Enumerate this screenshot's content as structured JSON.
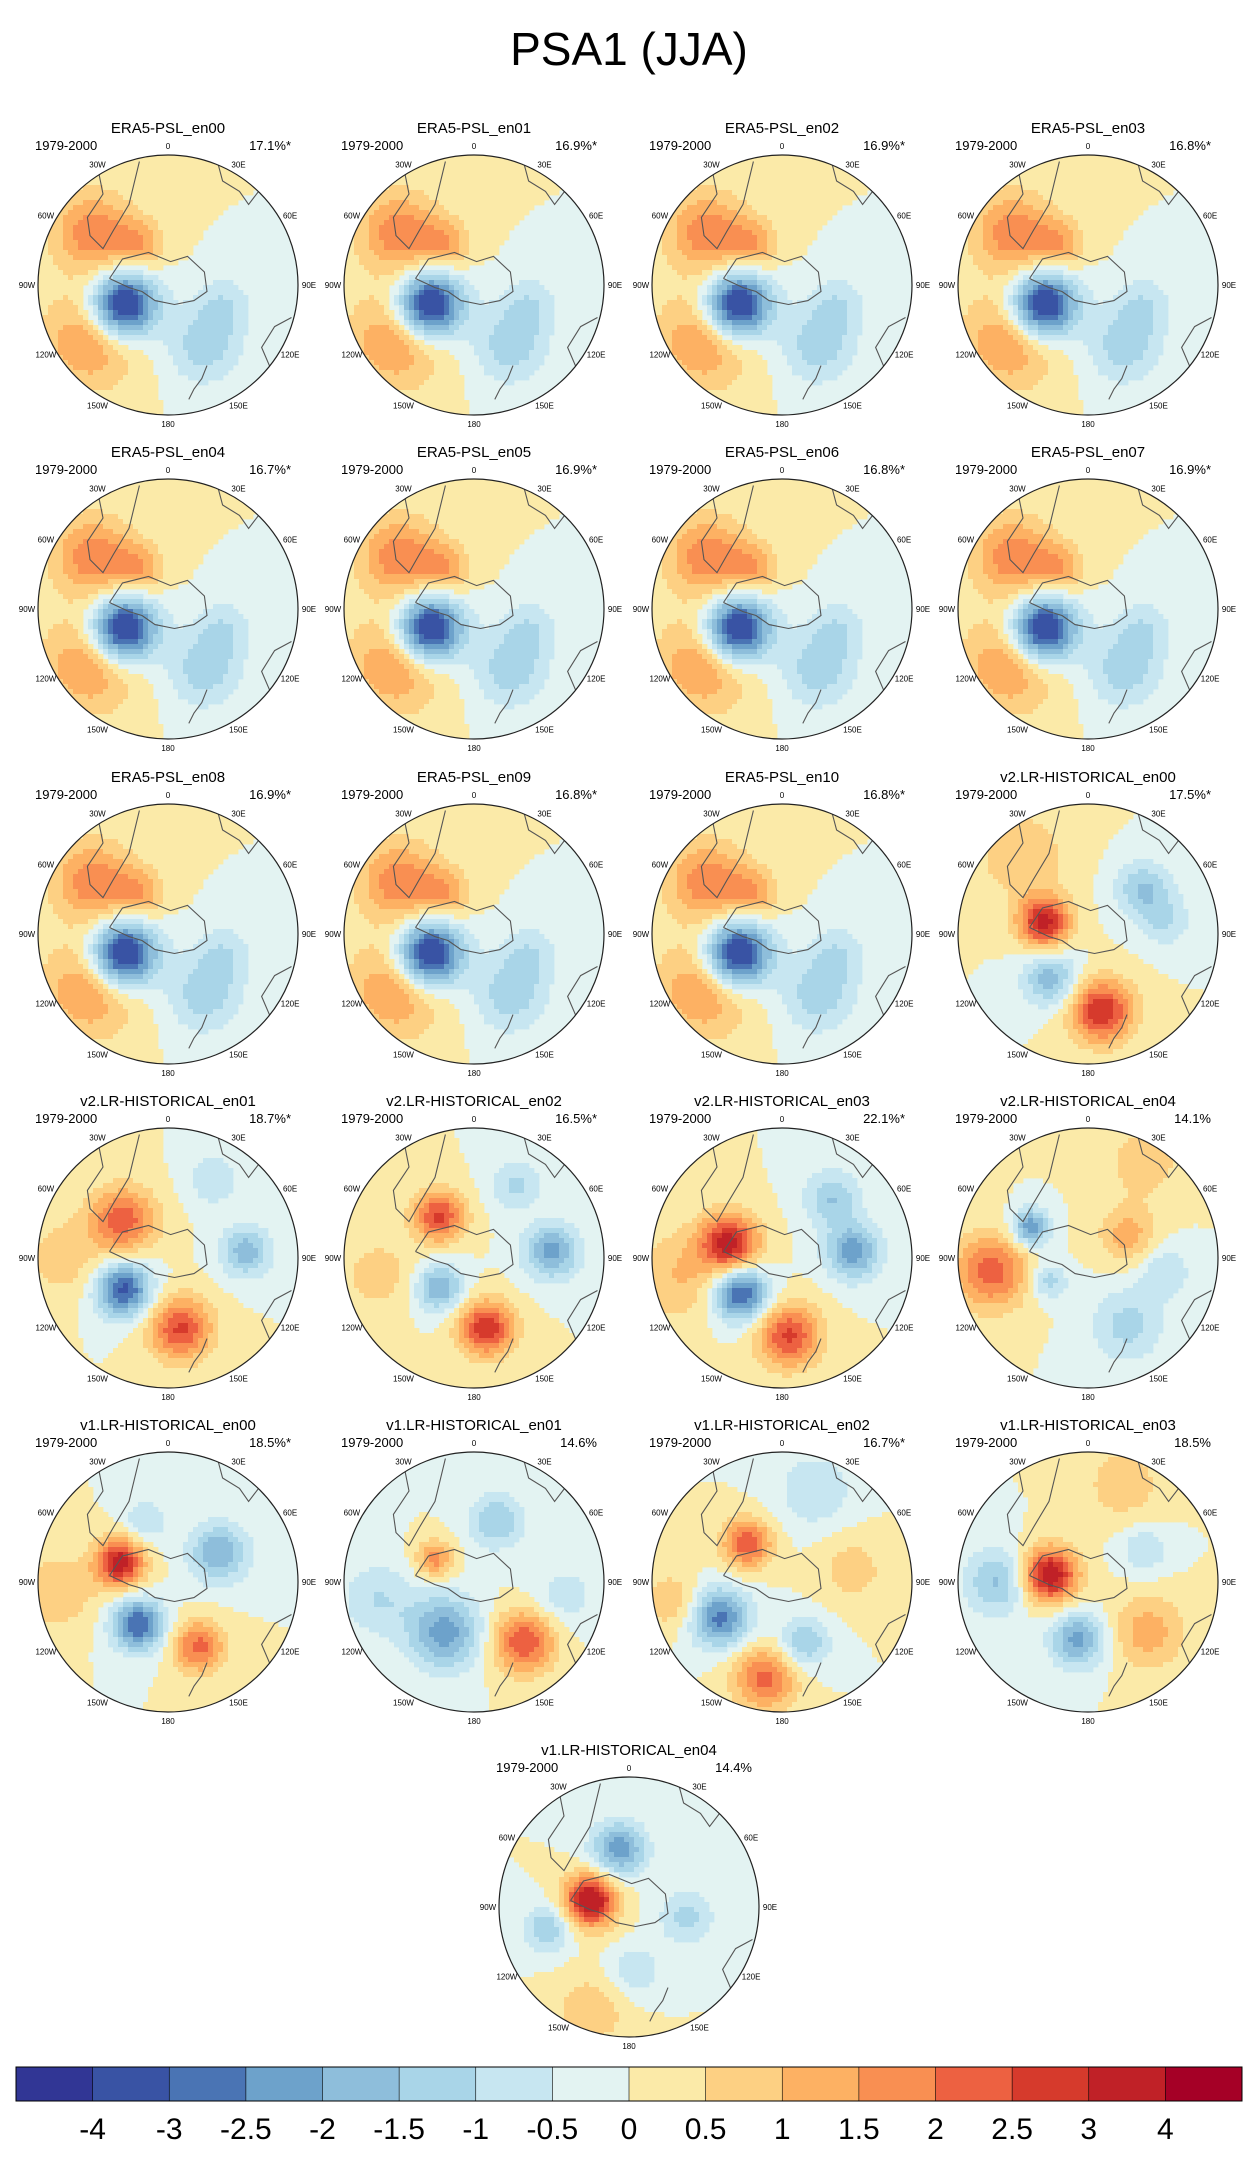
{
  "title": "PSA1 (JJA)",
  "period": "1979-2000",
  "lon_labels": [
    "0",
    "30E",
    "60E",
    "90E",
    "120E",
    "150E",
    "180",
    "150W",
    "120W",
    "90W",
    "60W",
    "30W"
  ],
  "colors": [
    "#313695",
    "#3953a4",
    "#4a74b4",
    "#6da2cb",
    "#8ebedb",
    "#a9d5e8",
    "#c7e6f1",
    "#e3f3f2",
    "#fbeaa8",
    "#fdd083",
    "#fdb163",
    "#f98f52",
    "#ed6141",
    "#d63a2c",
    "#c02127",
    "#a50026"
  ],
  "chart_data": {
    "type": "contour-map-panels",
    "projection": "south polar stereographic",
    "variable": "PSL regression pattern",
    "colorbar": {
      "tick_labels": [
        "-4",
        "-3",
        "-2.5",
        "-2",
        "-1.5",
        "-1",
        "-0.5",
        "0",
        "0.5",
        "1",
        "1.5",
        "2",
        "2.5",
        "3",
        "4"
      ],
      "levels": [
        -4,
        -3,
        -2.5,
        -2,
        -1.5,
        -1,
        -0.5,
        0,
        0.5,
        1,
        1.5,
        2,
        2.5,
        3,
        4
      ]
    },
    "panels": [
      {
        "name": "ERA5-PSL_en00",
        "pct": "17.1%*",
        "lobes": [
          [
            -4.3,
            0.38,
            245,
            0.18
          ],
          [
            1.7,
            0.72,
            235,
            0.26
          ],
          [
            1.9,
            0.7,
            305,
            0.22
          ],
          [
            1.3,
            0.38,
            325,
            0.13
          ],
          [
            -1.3,
            0.55,
            150,
            0.2
          ],
          [
            -0.9,
            0.45,
            110,
            0.16
          ]
        ]
      },
      {
        "name": "ERA5-PSL_en01",
        "pct": "16.9%*",
        "lobes": [
          [
            -4.3,
            0.38,
            245,
            0.18
          ],
          [
            1.7,
            0.72,
            235,
            0.26
          ],
          [
            1.9,
            0.7,
            305,
            0.22
          ],
          [
            1.3,
            0.38,
            325,
            0.13
          ],
          [
            -1.3,
            0.55,
            150,
            0.2
          ],
          [
            -0.9,
            0.45,
            110,
            0.16
          ]
        ]
      },
      {
        "name": "ERA5-PSL_en02",
        "pct": "16.9%*",
        "lobes": [
          [
            -4.3,
            0.38,
            245,
            0.18
          ],
          [
            1.7,
            0.72,
            235,
            0.26
          ],
          [
            1.9,
            0.7,
            305,
            0.22
          ],
          [
            1.3,
            0.38,
            325,
            0.13
          ],
          [
            -1.3,
            0.55,
            150,
            0.2
          ],
          [
            -0.9,
            0.45,
            110,
            0.16
          ]
        ]
      },
      {
        "name": "ERA5-PSL_en03",
        "pct": "16.8%*",
        "lobes": [
          [
            -4.3,
            0.38,
            245,
            0.18
          ],
          [
            1.7,
            0.72,
            235,
            0.26
          ],
          [
            1.9,
            0.7,
            305,
            0.22
          ],
          [
            1.3,
            0.38,
            325,
            0.13
          ],
          [
            -1.3,
            0.55,
            150,
            0.2
          ],
          [
            -0.9,
            0.45,
            110,
            0.16
          ]
        ]
      },
      {
        "name": "ERA5-PSL_en04",
        "pct": "16.7%*",
        "lobes": [
          [
            -4.3,
            0.38,
            245,
            0.18
          ],
          [
            1.7,
            0.72,
            235,
            0.26
          ],
          [
            1.9,
            0.7,
            305,
            0.22
          ],
          [
            1.3,
            0.38,
            325,
            0.13
          ],
          [
            -1.3,
            0.55,
            150,
            0.2
          ],
          [
            -0.9,
            0.45,
            110,
            0.16
          ]
        ]
      },
      {
        "name": "ERA5-PSL_en05",
        "pct": "16.9%*",
        "lobes": [
          [
            -4.3,
            0.38,
            245,
            0.18
          ],
          [
            1.7,
            0.72,
            235,
            0.26
          ],
          [
            1.9,
            0.7,
            305,
            0.22
          ],
          [
            1.3,
            0.38,
            325,
            0.13
          ],
          [
            -1.3,
            0.55,
            150,
            0.2
          ],
          [
            -0.9,
            0.45,
            110,
            0.16
          ]
        ]
      },
      {
        "name": "ERA5-PSL_en06",
        "pct": "16.8%*",
        "lobes": [
          [
            -4.3,
            0.38,
            245,
            0.18
          ],
          [
            1.7,
            0.72,
            235,
            0.26
          ],
          [
            1.9,
            0.7,
            305,
            0.22
          ],
          [
            1.3,
            0.38,
            325,
            0.13
          ],
          [
            -1.3,
            0.55,
            150,
            0.2
          ],
          [
            -0.9,
            0.45,
            110,
            0.16
          ]
        ]
      },
      {
        "name": "ERA5-PSL_en07",
        "pct": "16.9%*",
        "lobes": [
          [
            -4.3,
            0.38,
            245,
            0.18
          ],
          [
            1.7,
            0.72,
            235,
            0.26
          ],
          [
            1.9,
            0.7,
            305,
            0.22
          ],
          [
            1.3,
            0.38,
            325,
            0.13
          ],
          [
            -1.3,
            0.55,
            150,
            0.2
          ],
          [
            -0.9,
            0.45,
            110,
            0.16
          ]
        ]
      },
      {
        "name": "ERA5-PSL_en08",
        "pct": "16.9%*",
        "lobes": [
          [
            -4.3,
            0.38,
            245,
            0.18
          ],
          [
            1.7,
            0.72,
            235,
            0.26
          ],
          [
            1.9,
            0.7,
            305,
            0.22
          ],
          [
            1.3,
            0.38,
            325,
            0.13
          ],
          [
            -1.3,
            0.55,
            150,
            0.2
          ],
          [
            -0.9,
            0.45,
            110,
            0.16
          ]
        ]
      },
      {
        "name": "ERA5-PSL_en09",
        "pct": "16.8%*",
        "lobes": [
          [
            -4.3,
            0.38,
            245,
            0.18
          ],
          [
            1.7,
            0.72,
            235,
            0.26
          ],
          [
            1.9,
            0.7,
            305,
            0.22
          ],
          [
            1.3,
            0.38,
            325,
            0.13
          ],
          [
            -1.3,
            0.55,
            150,
            0.2
          ],
          [
            -0.9,
            0.45,
            110,
            0.16
          ]
        ]
      },
      {
        "name": "ERA5-PSL_en10",
        "pct": "16.8%*",
        "lobes": [
          [
            -4.3,
            0.38,
            245,
            0.18
          ],
          [
            1.7,
            0.72,
            235,
            0.26
          ],
          [
            1.9,
            0.7,
            305,
            0.22
          ],
          [
            1.3,
            0.38,
            325,
            0.13
          ],
          [
            -1.3,
            0.55,
            150,
            0.2
          ],
          [
            -0.9,
            0.45,
            110,
            0.16
          ]
        ]
      },
      {
        "name": "v2.LR-HISTORICAL_en00",
        "pct": "17.5%*",
        "lobes": [
          [
            3.2,
            0.35,
            285,
            0.14
          ],
          [
            -1.8,
            0.45,
            220,
            0.15
          ],
          [
            3.0,
            0.6,
            170,
            0.17
          ],
          [
            -1.5,
            0.55,
            50,
            0.15
          ],
          [
            -1.0,
            0.6,
            80,
            0.14
          ],
          [
            0.9,
            0.8,
            320,
            0.25
          ]
        ]
      },
      {
        "name": "v2.LR-HISTORICAL_en01",
        "pct": "18.7%*",
        "lobes": [
          [
            -3.2,
            0.42,
            235,
            0.15
          ],
          [
            2.6,
            0.55,
            170,
            0.17
          ],
          [
            2.3,
            0.45,
            310,
            0.18
          ],
          [
            -1.8,
            0.6,
            85,
            0.14
          ],
          [
            -1.0,
            0.7,
            30,
            0.14
          ],
          [
            0.8,
            0.8,
            270,
            0.22
          ]
        ]
      },
      {
        "name": "v2.LR-HISTORICAL_en02",
        "pct": "16.5%*",
        "lobes": [
          [
            2.6,
            0.42,
            320,
            0.14
          ],
          [
            2.9,
            0.55,
            170,
            0.15
          ],
          [
            -2.0,
            0.35,
            230,
            0.13
          ],
          [
            -2.2,
            0.6,
            85,
            0.15
          ],
          [
            -1.1,
            0.65,
            30,
            0.14
          ],
          [
            0.8,
            0.75,
            260,
            0.2
          ]
        ]
      },
      {
        "name": "v2.LR-HISTORICAL_en03",
        "pct": "22.1%*",
        "lobes": [
          [
            3.2,
            0.42,
            285,
            0.16
          ],
          [
            -3.3,
            0.42,
            230,
            0.15
          ],
          [
            2.6,
            0.6,
            175,
            0.17
          ],
          [
            -2.3,
            0.55,
            85,
            0.15
          ],
          [
            -1.5,
            0.6,
            40,
            0.15
          ],
          [
            1.0,
            0.8,
            260,
            0.25
          ]
        ]
      },
      {
        "name": "v2.LR-HISTORICAL_en04",
        "pct": "14.1%",
        "lobes": [
          [
            2.3,
            0.75,
            262,
            0.2
          ],
          [
            -2.5,
            0.5,
            298,
            0.1
          ],
          [
            -1.3,
            0.35,
            240,
            0.1
          ],
          [
            1.3,
            0.35,
            60,
            0.15
          ],
          [
            -1.2,
            0.6,
            150,
            0.2
          ],
          [
            -0.9,
            0.6,
            100,
            0.15
          ],
          [
            0.8,
            0.85,
            30,
            0.22
          ]
        ]
      },
      {
        "name": "v1.LR-HISTORICAL_en00",
        "pct": "18.5%*",
        "lobes": [
          [
            3.4,
            0.4,
            292,
            0.13
          ],
          [
            -3.0,
            0.4,
            215,
            0.14
          ],
          [
            2.2,
            0.55,
            155,
            0.14
          ],
          [
            -2.0,
            0.45,
            60,
            0.16
          ],
          [
            -1.0,
            0.5,
            340,
            0.12
          ],
          [
            1.0,
            0.85,
            265,
            0.2
          ]
        ]
      },
      {
        "name": "v1.LR-HISTORICAL_en01",
        "pct": "14.6%",
        "lobes": [
          [
            -2.3,
            0.45,
            210,
            0.2
          ],
          [
            2.5,
            0.6,
            140,
            0.17
          ],
          [
            1.8,
            0.35,
            300,
            0.1
          ],
          [
            -1.5,
            0.5,
            20,
            0.15
          ],
          [
            -1.0,
            0.75,
            260,
            0.2
          ],
          [
            -0.8,
            0.7,
            100,
            0.18
          ]
        ]
      },
      {
        "name": "v1.LR-HISTORICAL_en02",
        "pct": "16.7%*",
        "lobes": [
          [
            2.5,
            0.4,
            318,
            0.13
          ],
          [
            -2.7,
            0.55,
            240,
            0.16
          ],
          [
            2.2,
            0.75,
            190,
            0.17
          ],
          [
            -1.5,
            0.5,
            160,
            0.14
          ],
          [
            -1.0,
            0.75,
            20,
            0.2
          ],
          [
            0.8,
            0.55,
            80,
            0.18
          ],
          [
            1.0,
            0.85,
            260,
            0.15
          ]
        ]
      },
      {
        "name": "v1.LR-HISTORICAL_en03",
        "pct": "18.5%",
        "lobes": [
          [
            3.6,
            0.3,
            280,
            0.15
          ],
          [
            -2.2,
            0.45,
            190,
            0.15
          ],
          [
            -1.6,
            0.7,
            270,
            0.18
          ],
          [
            1.3,
            0.6,
            130,
            0.2
          ],
          [
            -1.0,
            0.5,
            60,
            0.13
          ],
          [
            0.9,
            0.8,
            20,
            0.2
          ]
        ]
      },
      {
        "name": "v1.LR-HISTORICAL_en04",
        "pct": "14.4%",
        "lobes": [
          [
            3.8,
            0.3,
            280,
            0.14
          ],
          [
            -2.3,
            0.45,
            350,
            0.15
          ],
          [
            -1.5,
            0.65,
            255,
            0.13
          ],
          [
            -1.2,
            0.45,
            100,
            0.15
          ],
          [
            -1.0,
            0.5,
            175,
            0.14
          ],
          [
            0.9,
            0.85,
            200,
            0.2
          ]
        ]
      }
    ]
  }
}
